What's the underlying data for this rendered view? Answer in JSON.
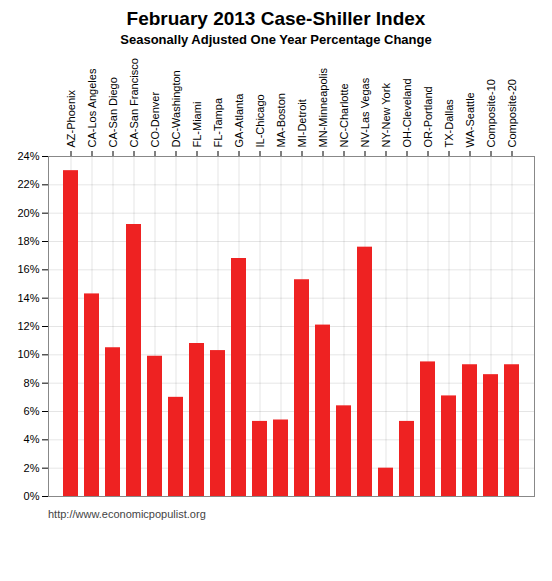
{
  "chart_data": {
    "type": "bar",
    "title": "February 2013 Case-Shiller Index",
    "subtitle": "Seasonally Adjusted One Year Percentage Change",
    "annotations": [
      "http://www.economicpopulist.org"
    ],
    "categories": [
      "AZ-Phoenix",
      "CA-Los Angeles",
      "CA-San Diego",
      "CA-San Francisco",
      "CO-Denver",
      "DC-Washington",
      "FL-Miami",
      "FL-Tampa",
      "GA-Atlanta",
      "IL-Chicago",
      "MA-Boston",
      "MI-Detroit",
      "MN-Minneapolis",
      "NC-Charlotte",
      "NV-Las Vegas",
      "NY-New York",
      "OH-Cleveland",
      "OR-Portland",
      "TX-Dallas",
      "WA-Seattle",
      "Composite-10",
      "Composite-20"
    ],
    "values": [
      23.0,
      14.3,
      10.5,
      19.2,
      9.9,
      7.0,
      10.8,
      10.3,
      16.8,
      5.3,
      5.4,
      15.3,
      12.1,
      6.4,
      17.6,
      2.0,
      5.3,
      9.5,
      7.1,
      9.3,
      8.6,
      9.3
    ],
    "color": "#ee2222",
    "ylim": [
      0,
      24
    ],
    "yticks": [
      {
        "value": 0,
        "label": "0%"
      },
      {
        "value": 2,
        "label": "2%"
      },
      {
        "value": 4,
        "label": "4%"
      },
      {
        "value": 6,
        "label": "6%"
      },
      {
        "value": 8,
        "label": "8%"
      },
      {
        "value": 10,
        "label": "10%"
      },
      {
        "value": 12,
        "label": "12%"
      },
      {
        "value": 14,
        "label": "14%"
      },
      {
        "value": 16,
        "label": "16%"
      },
      {
        "value": 18,
        "label": "18%"
      },
      {
        "value": 20,
        "label": "20%"
      },
      {
        "value": 22,
        "label": "22%"
      },
      {
        "value": 24,
        "label": "24%"
      }
    ],
    "grid": true
  }
}
